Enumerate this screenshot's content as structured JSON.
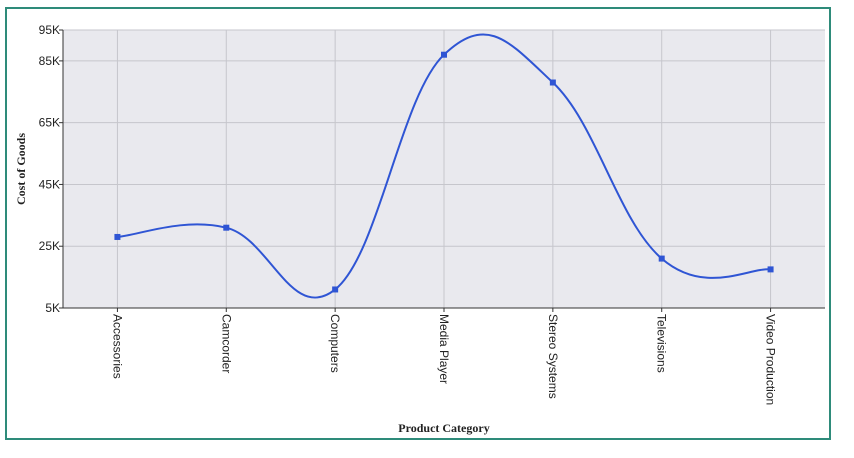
{
  "chart_data": {
    "type": "line",
    "title": "",
    "xlabel": "Product Category",
    "ylabel": "Cost of Goods",
    "categories": [
      "Accessories",
      "Camcorder",
      "Computers",
      "Media Player",
      "Stereo Systems",
      "Televisions",
      "Video Production"
    ],
    "series": [
      {
        "name": "",
        "values": [
          28000,
          31000,
          11000,
          87000,
          78000,
          21000,
          17500
        ]
      }
    ],
    "ylim": [
      5000,
      95000
    ],
    "yticks": [
      5000,
      25000,
      45000,
      65000,
      85000,
      95000
    ],
    "ytick_labels": [
      "5K",
      "25K",
      "45K",
      "65K",
      "85K",
      "95K"
    ],
    "grid": true,
    "line_style": "smooth",
    "colors": {
      "series": "#2f55d4",
      "plot_bg": "#e9e9ee",
      "grid": "#c6c6cc",
      "frame": "#2e8b7a"
    }
  }
}
